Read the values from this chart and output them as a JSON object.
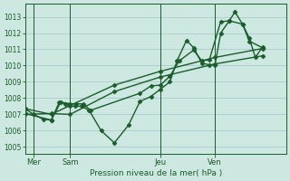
{
  "bg_color": "#cce8e0",
  "grid_color": "#aacccc",
  "line_color": "#1a5c2a",
  "marker": "D",
  "markersize": 2.5,
  "linewidth": 1.0,
  "ylabel_ticks": [
    1005,
    1006,
    1007,
    1008,
    1009,
    1010,
    1011,
    1012,
    1013
  ],
  "ylim": [
    1004.6,
    1013.8
  ],
  "xlim": [
    0.0,
    5.5
  ],
  "xlabel": "Pression niveau de la mer( hPa )",
  "day_labels": [
    "Mer",
    "Sam",
    "Jeu",
    "Ven"
  ],
  "day_positions": [
    0.18,
    0.95,
    2.85,
    4.0
  ],
  "vline_positions": [
    0.18,
    0.95,
    2.85,
    4.0
  ],
  "lines": [
    {
      "xy": [
        0.0,
        1007.35,
        0.18,
        1007.0,
        0.38,
        1006.7,
        0.55,
        1006.65,
        0.72,
        1007.75,
        0.85,
        1007.65,
        0.95,
        1007.5,
        1.05,
        1007.5,
        1.18,
        1007.5,
        1.35,
        1007.25,
        1.6,
        1006.0,
        1.88,
        1005.25,
        2.18,
        1006.35,
        2.42,
        1007.8,
        2.65,
        1008.1,
        2.85,
        1008.55,
        3.05,
        1009.0,
        3.2,
        1010.3,
        3.4,
        1011.55,
        3.55,
        1011.1,
        3.72,
        1010.15,
        3.88,
        1010.05,
        4.0,
        1010.05,
        4.12,
        1012.0,
        4.3,
        1012.75,
        4.42,
        1013.3,
        4.58,
        1012.55,
        4.72,
        1011.7,
        4.85,
        1010.5,
        5.0,
        1011.15
      ]
    },
    {
      "xy": [
        0.0,
        1007.35,
        0.55,
        1007.0,
        0.95,
        1007.55,
        1.88,
        1008.8,
        2.85,
        1009.65,
        4.0,
        1010.5,
        5.0,
        1011.05
      ]
    },
    {
      "xy": [
        0.0,
        1007.0,
        0.55,
        1007.05,
        0.95,
        1007.0,
        1.88,
        1008.4,
        2.85,
        1009.3,
        4.0,
        1010.1,
        5.0,
        1010.6
      ]
    },
    {
      "xy": [
        0.0,
        1007.05,
        0.55,
        1006.65,
        0.75,
        1007.75,
        0.95,
        1007.65,
        1.08,
        1007.65,
        1.22,
        1007.65,
        1.38,
        1007.25,
        2.42,
        1008.3,
        2.65,
        1008.75,
        2.85,
        1008.8,
        3.05,
        1009.35,
        3.25,
        1010.3,
        3.55,
        1010.95,
        3.72,
        1010.3,
        3.88,
        1010.35,
        4.12,
        1012.7,
        4.3,
        1012.75,
        4.58,
        1012.55,
        4.72,
        1011.5,
        5.0,
        1011.1
      ]
    }
  ]
}
